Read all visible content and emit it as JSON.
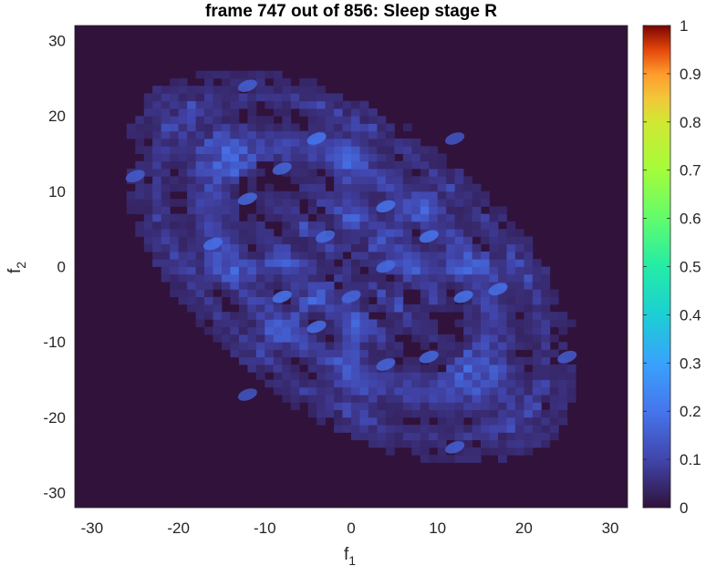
{
  "chart_data": {
    "type": "heatmap",
    "title": "frame 747 out of 856: Sleep stage R",
    "xlabel": "f",
    "xlabel_sub": "1",
    "ylabel": "f",
    "ylabel_sub": "2",
    "xlim": [
      -32,
      32
    ],
    "ylim": [
      -32,
      32
    ],
    "xticks": [
      -30,
      -20,
      -10,
      0,
      10,
      20,
      30
    ],
    "yticks": [
      30,
      20,
      10,
      0,
      -10,
      -20,
      -30
    ],
    "colorbar": {
      "colormap": "turbo",
      "range": [
        0,
        1
      ],
      "ticks": [
        0,
        0.1,
        0.2,
        0.3,
        0.4,
        0.5,
        0.6,
        0.7,
        0.8,
        0.9,
        1
      ],
      "tick_labels": [
        "0",
        "0.1",
        "0.2",
        "0.3",
        "0.4",
        "0.5",
        "0.6",
        "0.7",
        "0.8",
        "0.9",
        "1"
      ]
    },
    "background_color": "#30123b",
    "pattern": {
      "description_values": "elliptical ring pattern tilted along f2 = -f1, mostly low values 0.05-0.2",
      "peak_points": [
        {
          "x": -12,
          "y": 24,
          "v": 0.16
        },
        {
          "x": -25,
          "y": 12,
          "v": 0.15
        },
        {
          "x": -4,
          "y": 17,
          "v": 0.2
        },
        {
          "x": -12,
          "y": 9,
          "v": 0.18
        },
        {
          "x": -16,
          "y": 3,
          "v": 0.19
        },
        {
          "x": 9,
          "y": 4,
          "v": 0.2
        },
        {
          "x": 4,
          "y": 8,
          "v": 0.2
        },
        {
          "x": 4,
          "y": 0,
          "v": 0.18
        },
        {
          "x": -8,
          "y": -4,
          "v": 0.2
        },
        {
          "x": -4,
          "y": -8,
          "v": 0.19
        },
        {
          "x": 0,
          "y": -4,
          "v": 0.17
        },
        {
          "x": 13,
          "y": -4,
          "v": 0.2
        },
        {
          "x": 17,
          "y": -3,
          "v": 0.19
        },
        {
          "x": 4,
          "y": -13,
          "v": 0.17
        },
        {
          "x": 12,
          "y": -24,
          "v": 0.16
        },
        {
          "x": 25,
          "y": -12,
          "v": 0.15
        },
        {
          "x": 9,
          "y": -12,
          "v": 0.18
        },
        {
          "x": -3,
          "y": 4,
          "v": 0.18
        },
        {
          "x": -8,
          "y": 13,
          "v": 0.17
        },
        {
          "x": 12,
          "y": 17,
          "v": 0.14
        },
        {
          "x": -12,
          "y": -17,
          "v": 0.14
        }
      ]
    }
  }
}
